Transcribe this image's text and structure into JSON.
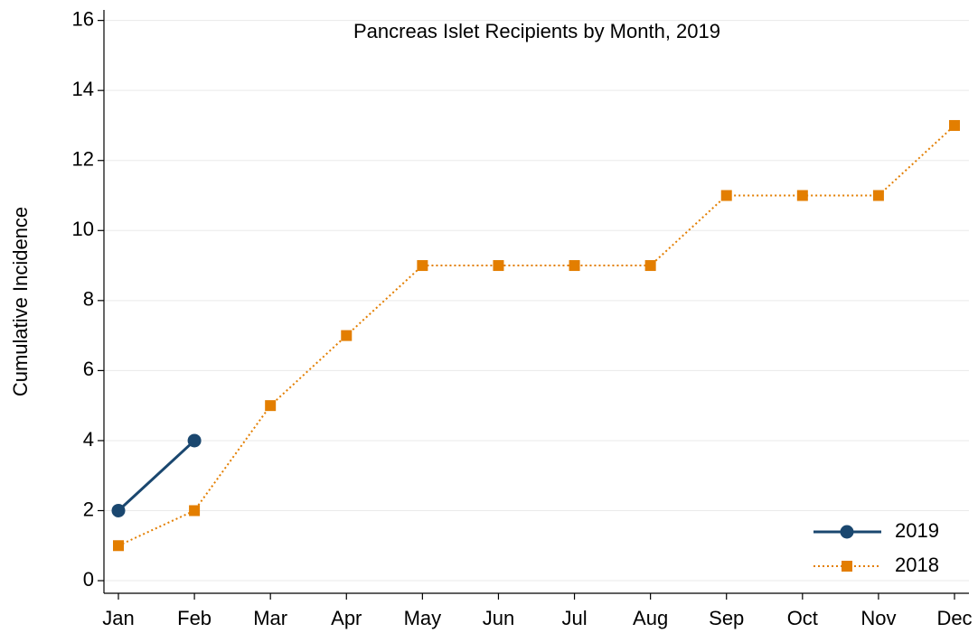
{
  "chart_data": {
    "type": "line",
    "title": "Pancreas Islet Recipients by Month, 2019",
    "y_label": "Cumulative Incidence",
    "categories": [
      "Jan",
      "Feb",
      "Mar",
      "Apr",
      "May",
      "Jun",
      "Jul",
      "Aug",
      "Sep",
      "Oct",
      "Nov",
      "Dec"
    ],
    "series": [
      {
        "name": "2019",
        "color": "#1a476f",
        "values": [
          2,
          4,
          null,
          null,
          null,
          null,
          null,
          null,
          null,
          null,
          null,
          null
        ]
      },
      {
        "name": "2018",
        "color": "#e37e00",
        "values": [
          1,
          2,
          5,
          7,
          9,
          9,
          9,
          9,
          11,
          11,
          11,
          13
        ]
      }
    ],
    "ylim": [
      -0.36,
      16.3
    ],
    "yticks": [
      0,
      2,
      4,
      6,
      8,
      10,
      12,
      14,
      16
    ],
    "grid": true,
    "legend": "lower right"
  }
}
